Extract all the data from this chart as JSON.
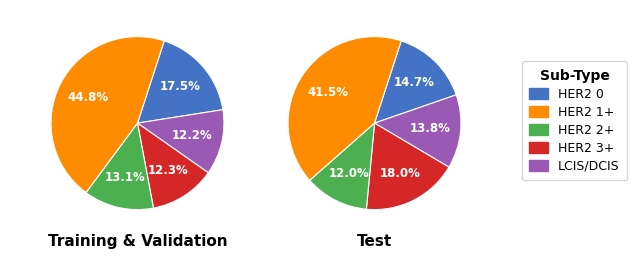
{
  "train_values": [
    17.5,
    12.2,
    12.3,
    13.1,
    44.8
  ],
  "train_colors": [
    "#4472C4",
    "#9B59B6",
    "#D62728",
    "#4CAF50",
    "#FF8C00"
  ],
  "test_values": [
    14.7,
    13.8,
    18.0,
    12.0,
    41.5
  ],
  "test_colors": [
    "#4472C4",
    "#9B59B6",
    "#D62728",
    "#4CAF50",
    "#FF8C00"
  ],
  "legend_colors": [
    "#4472C4",
    "#FF8C00",
    "#4CAF50",
    "#D62728",
    "#9B59B6"
  ],
  "train_title": "Training & Validation",
  "test_title": "Test",
  "legend_title": "Sub-Type",
  "legend_labels": [
    "HER2 0",
    "HER2 1+",
    "HER2 2+",
    "HER2 3+",
    "LCIS/DCIS"
  ],
  "startangle_train": 72,
  "startangle_test": 72,
  "background_color": "#FFFFFF",
  "text_color": "white",
  "label_fontsize": 8.5,
  "title_fontsize": 11
}
